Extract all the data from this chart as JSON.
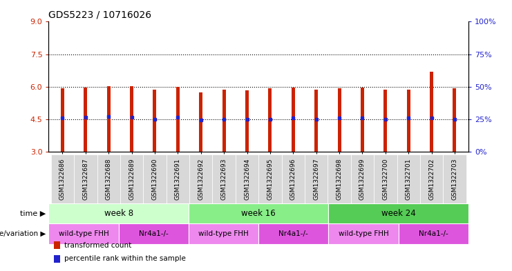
{
  "title": "GDS5223 / 10716026",
  "samples": [
    "GSM1322686",
    "GSM1322687",
    "GSM1322688",
    "GSM1322689",
    "GSM1322690",
    "GSM1322691",
    "GSM1322692",
    "GSM1322693",
    "GSM1322694",
    "GSM1322695",
    "GSM1322696",
    "GSM1322697",
    "GSM1322698",
    "GSM1322699",
    "GSM1322700",
    "GSM1322701",
    "GSM1322702",
    "GSM1322703"
  ],
  "bar_tops": [
    5.92,
    5.95,
    6.02,
    6.02,
    5.88,
    6.0,
    5.75,
    5.88,
    5.82,
    5.92,
    5.97,
    5.88,
    5.92,
    5.97,
    5.88,
    5.88,
    6.68,
    5.92
  ],
  "blue_vals": [
    4.55,
    4.58,
    4.62,
    4.58,
    4.5,
    4.58,
    4.48,
    4.5,
    4.5,
    4.5,
    4.55,
    4.5,
    4.55,
    4.55,
    4.5,
    4.55,
    4.55,
    4.5
  ],
  "bar_bottom": 3.0,
  "bar_width": 0.15,
  "ylim_left": [
    3,
    9
  ],
  "ylim_right": [
    0,
    100
  ],
  "yticks_left": [
    3,
    4.5,
    6,
    7.5,
    9
  ],
  "yticks_right": [
    0,
    25,
    50,
    75,
    100
  ],
  "hlines": [
    4.5,
    6.0,
    7.5
  ],
  "bar_color": "#CC2200",
  "blue_color": "#2222CC",
  "time_groups": [
    {
      "label": "week 8",
      "start": 0,
      "end": 6,
      "color": "#CCFFCC"
    },
    {
      "label": "week 16",
      "start": 6,
      "end": 12,
      "color": "#88EE88"
    },
    {
      "label": "week 24",
      "start": 12,
      "end": 18,
      "color": "#55CC55"
    }
  ],
  "genotype_groups": [
    {
      "label": "wild-type FHH",
      "start": 0,
      "end": 3,
      "color": "#EE88EE"
    },
    {
      "label": "Nr4a1-/-",
      "start": 3,
      "end": 6,
      "color": "#DD55DD"
    },
    {
      "label": "wild-type FHH",
      "start": 6,
      "end": 9,
      "color": "#EE88EE"
    },
    {
      "label": "Nr4a1-/-",
      "start": 9,
      "end": 12,
      "color": "#DD55DD"
    },
    {
      "label": "wild-type FHH",
      "start": 12,
      "end": 15,
      "color": "#EE88EE"
    },
    {
      "label": "Nr4a1-/-",
      "start": 15,
      "end": 18,
      "color": "#DD55DD"
    }
  ],
  "legend_items": [
    {
      "label": "transformed count",
      "color": "#CC2200"
    },
    {
      "label": "percentile rank within the sample",
      "color": "#2222CC"
    }
  ],
  "xlabel_fontsize": 7,
  "title_fontsize": 10,
  "tick_label_color_left": "#CC2200",
  "tick_label_color_right": "#2222CC"
}
